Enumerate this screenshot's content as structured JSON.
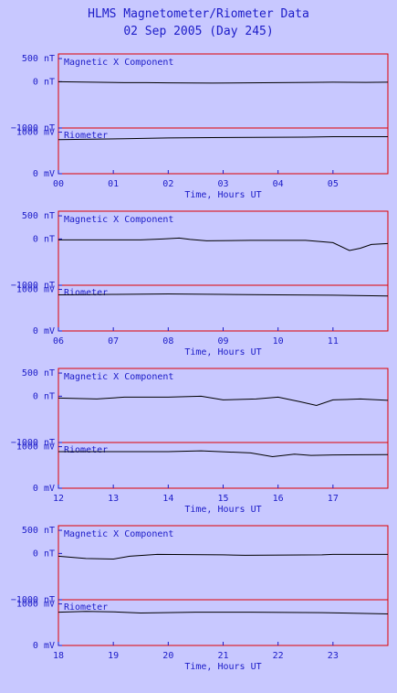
{
  "header": {
    "title": "HLMS Magnetometer/Riometer Data",
    "subtitle": "02 Sep 2005 (Day 245)"
  },
  "colors": {
    "background": "#c8c8ff",
    "frame": "#e00000",
    "text": "#1c1cc8",
    "trace": "#000000"
  },
  "chart_data": [
    {
      "type": "line",
      "title": "Magnetic X Component / Riometer",
      "xlabel": "Time, Hours UT",
      "xticks": [
        "00",
        "01",
        "02",
        "03",
        "04",
        "05"
      ],
      "xlim": [
        0,
        6
      ],
      "mag": {
        "label": "Magnetic X Component",
        "ylim": [
          -1000,
          600
        ],
        "yticks": [
          "500 nT",
          "0 nT",
          "−1000 nT"
        ],
        "series": [
          [
            0,
            0
          ],
          [
            1.2,
            -20
          ],
          [
            1.6,
            -20
          ],
          [
            2.0,
            -25
          ],
          [
            2.8,
            -30
          ],
          [
            4.6,
            -15
          ],
          [
            5.0,
            -10
          ],
          [
            5.6,
            -15
          ],
          [
            6,
            -10
          ]
        ]
      },
      "rio": {
        "label": "Riometer",
        "ylim": [
          0,
          1100
        ],
        "yticks": [
          "1000 mV",
          "0 mV"
        ],
        "series": [
          [
            0,
            820
          ],
          [
            1.2,
            840
          ],
          [
            2.0,
            860
          ],
          [
            2.8,
            870
          ],
          [
            4.5,
            880
          ],
          [
            5.0,
            890
          ],
          [
            6,
            890
          ]
        ]
      }
    },
    {
      "type": "line",
      "title": "Magnetic X Component / Riometer",
      "xlabel": "Time, Hours UT",
      "xticks": [
        "06",
        "07",
        "08",
        "09",
        "10",
        "11"
      ],
      "xlim": [
        6,
        12
      ],
      "mag": {
        "label": "Magnetic X Component",
        "ylim": [
          -1000,
          600
        ],
        "yticks": [
          "500 nT",
          "0 nT",
          "−1000 nT"
        ],
        "series": [
          [
            6,
            -20
          ],
          [
            7.5,
            -20
          ],
          [
            7.9,
            0
          ],
          [
            8.2,
            20
          ],
          [
            8.4,
            -10
          ],
          [
            8.7,
            -40
          ],
          [
            9.5,
            -30
          ],
          [
            10.5,
            -30
          ],
          [
            11,
            -80
          ],
          [
            11.3,
            -250
          ],
          [
            11.5,
            -200
          ],
          [
            11.7,
            -120
          ],
          [
            12,
            -100
          ]
        ]
      },
      "rio": {
        "label": "Riometer",
        "ylim": [
          0,
          1100
        ],
        "yticks": [
          "1000 mV",
          "0 mV"
        ],
        "series": [
          [
            6,
            870
          ],
          [
            7,
            880
          ],
          [
            8,
            890
          ],
          [
            9,
            880
          ],
          [
            10,
            870
          ],
          [
            11,
            860
          ],
          [
            12,
            840
          ]
        ]
      }
    },
    {
      "type": "line",
      "title": "Magnetic X Component / Riometer",
      "xlabel": "Time, Hours UT",
      "xticks": [
        "12",
        "13",
        "14",
        "15",
        "16",
        "17"
      ],
      "xlim": [
        12,
        18
      ],
      "mag": {
        "label": "Magnetic X Component",
        "ylim": [
          -1000,
          600
        ],
        "yticks": [
          "500 nT",
          "0 nT",
          "−1000 nT"
        ],
        "series": [
          [
            12,
            -40
          ],
          [
            12.7,
            -60
          ],
          [
            13.2,
            -20
          ],
          [
            14,
            -20
          ],
          [
            14.6,
            0
          ],
          [
            15,
            -80
          ],
          [
            15.6,
            -60
          ],
          [
            16,
            -20
          ],
          [
            16.4,
            -120
          ],
          [
            16.7,
            -200
          ],
          [
            17,
            -80
          ],
          [
            17.5,
            -60
          ],
          [
            18,
            -90
          ]
        ]
      },
      "rio": {
        "label": "Riometer",
        "ylim": [
          0,
          1100
        ],
        "yticks": [
          "1000 mV",
          "0 mV"
        ],
        "series": [
          [
            12,
            880
          ],
          [
            13,
            880
          ],
          [
            14,
            880
          ],
          [
            14.6,
            900
          ],
          [
            15.5,
            850
          ],
          [
            15.9,
            760
          ],
          [
            16.3,
            820
          ],
          [
            16.6,
            790
          ],
          [
            17,
            800
          ],
          [
            18,
            810
          ]
        ]
      }
    },
    {
      "type": "line",
      "title": "Magnetic X Component / Riometer",
      "xlabel": "Time, Hours UT",
      "xticks": [
        "18",
        "19",
        "20",
        "21",
        "22",
        "23"
      ],
      "xlim": [
        18,
        24
      ],
      "mag": {
        "label": "Magnetic X Component",
        "ylim": [
          -1000,
          600
        ],
        "yticks": [
          "500 nT",
          "0 nT",
          "−1000 nT"
        ],
        "series": [
          [
            18,
            -60
          ],
          [
            18.5,
            -110
          ],
          [
            19,
            -120
          ],
          [
            19.3,
            -60
          ],
          [
            19.8,
            -20
          ],
          [
            21,
            -30
          ],
          [
            21.4,
            -40
          ],
          [
            22.8,
            -30
          ],
          [
            23,
            -20
          ],
          [
            24,
            -20
          ]
        ]
      },
      "rio": {
        "label": "Riometer",
        "ylim": [
          0,
          1100
        ],
        "yticks": [
          "1000 mV",
          "0 mV"
        ],
        "series": [
          [
            18,
            800
          ],
          [
            18.5,
            820
          ],
          [
            19,
            810
          ],
          [
            19.5,
            780
          ],
          [
            20.5,
            800
          ],
          [
            21.5,
            800
          ],
          [
            22.8,
            790
          ],
          [
            24,
            760
          ]
        ]
      }
    }
  ]
}
